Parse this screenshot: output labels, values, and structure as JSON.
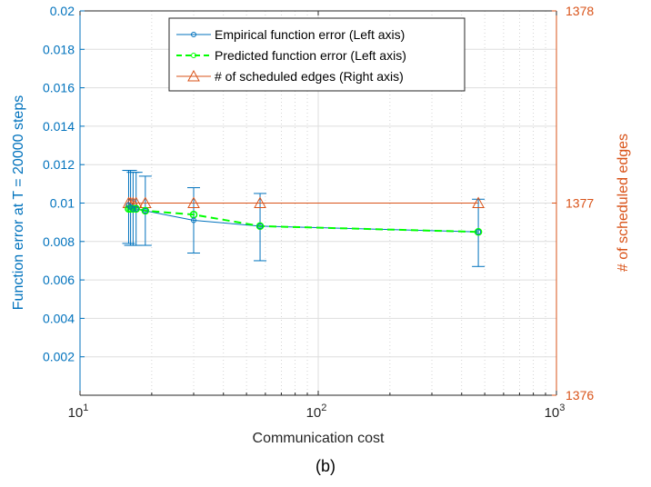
{
  "caption": "(b)",
  "chart_data": {
    "type": "line",
    "xlabel": "Communication cost",
    "ylabel_left": "Function error at T = 20000 steps",
    "ylabel_right": "# of scheduled edges",
    "x_scale": "log",
    "xlim": [
      10,
      1000
    ],
    "x_ticks": [
      {
        "value": 10,
        "base": "10",
        "exp": "1"
      },
      {
        "value": 100,
        "base": "10",
        "exp": "2"
      },
      {
        "value": 1000,
        "base": "10",
        "exp": "3"
      }
    ],
    "ylim_left": [
      0,
      0.02
    ],
    "y_ticks_left": [
      "0.002",
      "0.004",
      "0.006",
      "0.008",
      "0.01",
      "0.012",
      "0.014",
      "0.016",
      "0.018",
      "0.02"
    ],
    "ylim_right": [
      1376,
      1378
    ],
    "y_ticks_right": [
      "1376",
      "1377",
      "1378"
    ],
    "grid": true,
    "legend_position": "top-right",
    "colors": {
      "left_axis": "#0072BD",
      "right_axis": "#D95319",
      "empirical": "#0072BD",
      "predicted": "#00FF00",
      "scheduled": "#D95319",
      "grid": "#DEDEDE",
      "minor_grid": "#C9C9C9"
    },
    "series": [
      {
        "name": "Empirical function error (Left axis)",
        "axis": "left",
        "style": "solid",
        "marker": "circle",
        "x": [
          16,
          16.3,
          16.7,
          17.2,
          18.8,
          30,
          57,
          470
        ],
        "y": [
          0.0099,
          0.0098,
          0.0097,
          0.0097,
          0.0096,
          0.0091,
          0.0088,
          0.0085
        ],
        "error_low": [
          0.0079,
          0.0078,
          0.0078,
          0.0078,
          0.0078,
          0.0074,
          0.007,
          0.0067
        ],
        "error_high": [
          0.0117,
          0.0117,
          0.0116,
          0.0116,
          0.0114,
          0.0108,
          0.0105,
          0.0102
        ]
      },
      {
        "name": "Predicted function error (Left axis)",
        "axis": "left",
        "style": "dashed",
        "marker": "circle",
        "x": [
          16,
          16.3,
          16.7,
          17.2,
          18.8,
          30,
          57,
          470
        ],
        "y": [
          0.0097,
          0.0097,
          0.0097,
          0.0097,
          0.0096,
          0.0094,
          0.0088,
          0.0085
        ]
      },
      {
        "name": "# of scheduled edges (Right axis)",
        "axis": "right",
        "style": "solid",
        "marker": "triangle",
        "x": [
          16,
          16.3,
          16.7,
          17.2,
          18.8,
          30,
          57,
          470
        ],
        "y": [
          1377,
          1377,
          1377,
          1377,
          1377,
          1377,
          1377,
          1377
        ]
      }
    ]
  }
}
